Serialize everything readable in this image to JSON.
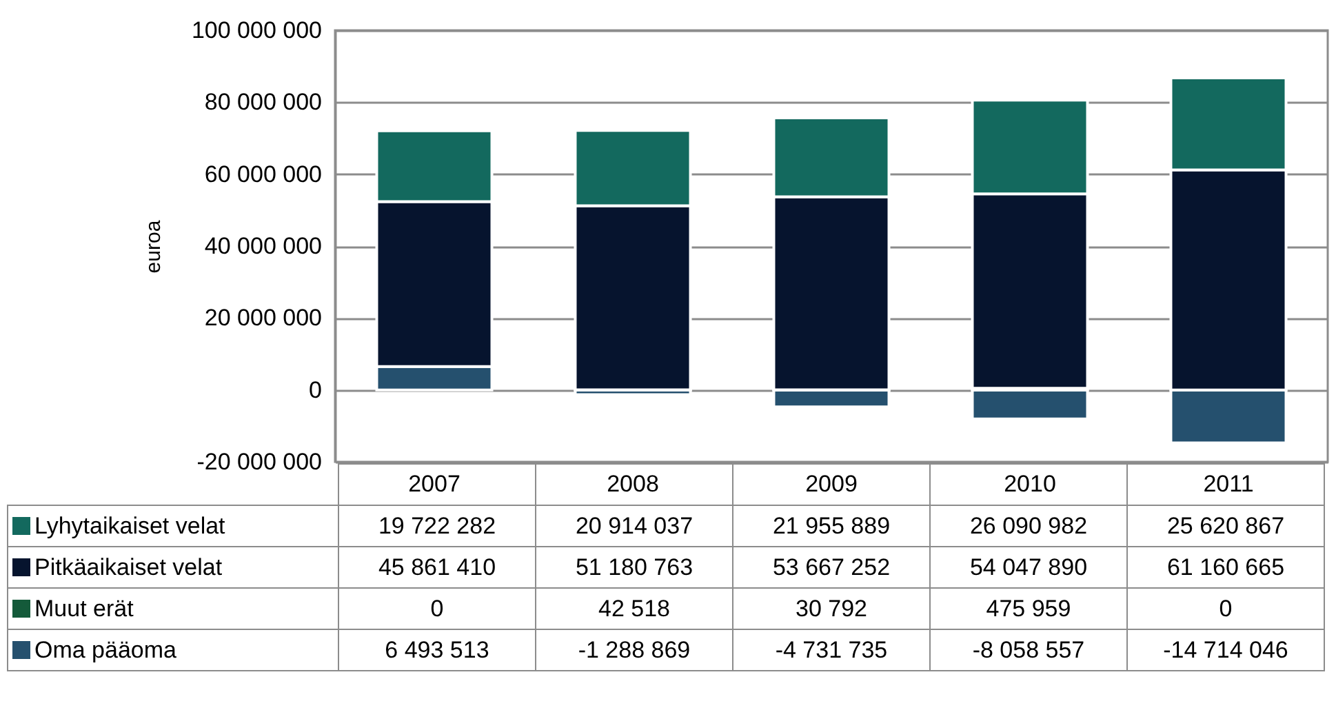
{
  "chart_data": {
    "type": "bar",
    "ylabel": "euroa",
    "categories": [
      "2007",
      "2008",
      "2009",
      "2010",
      "2011"
    ],
    "stacked": true,
    "data_labels": true,
    "grid": "y",
    "legend": "bottom",
    "ylim": [
      -20000000,
      100000000
    ],
    "yticks": [
      {
        "value": -20000000,
        "label": "-20 000 000"
      },
      {
        "value": 0,
        "label": "0"
      },
      {
        "value": 20000000,
        "label": "20 000 000"
      },
      {
        "value": 40000000,
        "label": "40 000 000"
      },
      {
        "value": 60000000,
        "label": "60 000 000"
      },
      {
        "value": 80000000,
        "label": "80 000 000"
      },
      {
        "value": 100000000,
        "label": "100 000 000"
      }
    ],
    "series": [
      {
        "name": "Oma pääoma",
        "color": "#25506e",
        "values": [
          6493513,
          -1288869,
          -4731735,
          -8058557,
          -14714046
        ]
      },
      {
        "name": "Muut erät",
        "color": "#145a3a",
        "values": [
          0,
          42518,
          30792,
          475959,
          0
        ]
      },
      {
        "name": "Pitkäaikaiset velat",
        "color": "#06142e",
        "values": [
          45861410,
          51180763,
          53667252,
          54047890,
          61160665
        ]
      },
      {
        "name": "Lyhytaikaiset velat",
        "color": "#13695e",
        "values": [
          19722282,
          20914037,
          21955889,
          26090982,
          25620867
        ]
      }
    ]
  }
}
